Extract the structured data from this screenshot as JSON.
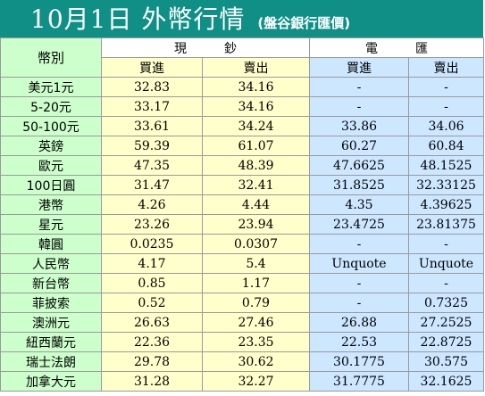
{
  "header": {
    "title": "10月1日 外幣行情",
    "subtitle": "(盤谷銀行匯價)"
  },
  "table": {
    "corner_label": "幣別",
    "group_cash": "現　　　鈔",
    "group_wire": "電　　　匯",
    "buy_label": "買進",
    "sell_label": "賣出",
    "rows": [
      {
        "currency": "美元1元",
        "cash_buy": "32.83",
        "cash_sell": "34.16",
        "wire_buy": "-",
        "wire_sell": "-"
      },
      {
        "currency": "5-20元",
        "cash_buy": "33.17",
        "cash_sell": "34.16",
        "wire_buy": "-",
        "wire_sell": "-"
      },
      {
        "currency": "50-100元",
        "cash_buy": "33.61",
        "cash_sell": "34.24",
        "wire_buy": "33.86",
        "wire_sell": "34.06"
      },
      {
        "currency": "英鎊",
        "cash_buy": "59.39",
        "cash_sell": "61.07",
        "wire_buy": "60.27",
        "wire_sell": "60.84"
      },
      {
        "currency": "歐元",
        "cash_buy": "47.35",
        "cash_sell": "48.39",
        "wire_buy": "47.6625",
        "wire_sell": "48.1525"
      },
      {
        "currency": "100日圓",
        "cash_buy": "31.47",
        "cash_sell": "32.41",
        "wire_buy": "31.8525",
        "wire_sell": "32.33125"
      },
      {
        "currency": "港幣",
        "cash_buy": "4.26",
        "cash_sell": "4.44",
        "wire_buy": "4.35",
        "wire_sell": "4.39625"
      },
      {
        "currency": "星元",
        "cash_buy": "23.26",
        "cash_sell": "23.94",
        "wire_buy": "23.4725",
        "wire_sell": "23.81375"
      },
      {
        "currency": "韓圓",
        "cash_buy": "0.0235",
        "cash_sell": "0.0307",
        "wire_buy": "-",
        "wire_sell": "-"
      },
      {
        "currency": "人民幣",
        "cash_buy": "4.17",
        "cash_sell": "5.4",
        "wire_buy": "Unquote",
        "wire_sell": "Unquote"
      },
      {
        "currency": "新台幣",
        "cash_buy": "0.85",
        "cash_sell": "1.17",
        "wire_buy": "-",
        "wire_sell": "-"
      },
      {
        "currency": "菲披索",
        "cash_buy": "0.52",
        "cash_sell": "0.79",
        "wire_buy": "-",
        "wire_sell": "0.7325"
      },
      {
        "currency": "澳洲元",
        "cash_buy": "26.63",
        "cash_sell": "27.46",
        "wire_buy": "26.88",
        "wire_sell": "27.2525"
      },
      {
        "currency": "紐西蘭元",
        "cash_buy": "22.36",
        "cash_sell": "23.35",
        "wire_buy": "22.53",
        "wire_sell": "22.8725"
      },
      {
        "currency": "瑞士法朗",
        "cash_buy": "29.78",
        "cash_sell": "30.62",
        "wire_buy": "30.1775",
        "wire_sell": "30.575"
      },
      {
        "currency": "加拿大元",
        "cash_buy": "31.28",
        "cash_sell": "32.27",
        "wire_buy": "31.7775",
        "wire_sell": "32.1625"
      }
    ]
  }
}
